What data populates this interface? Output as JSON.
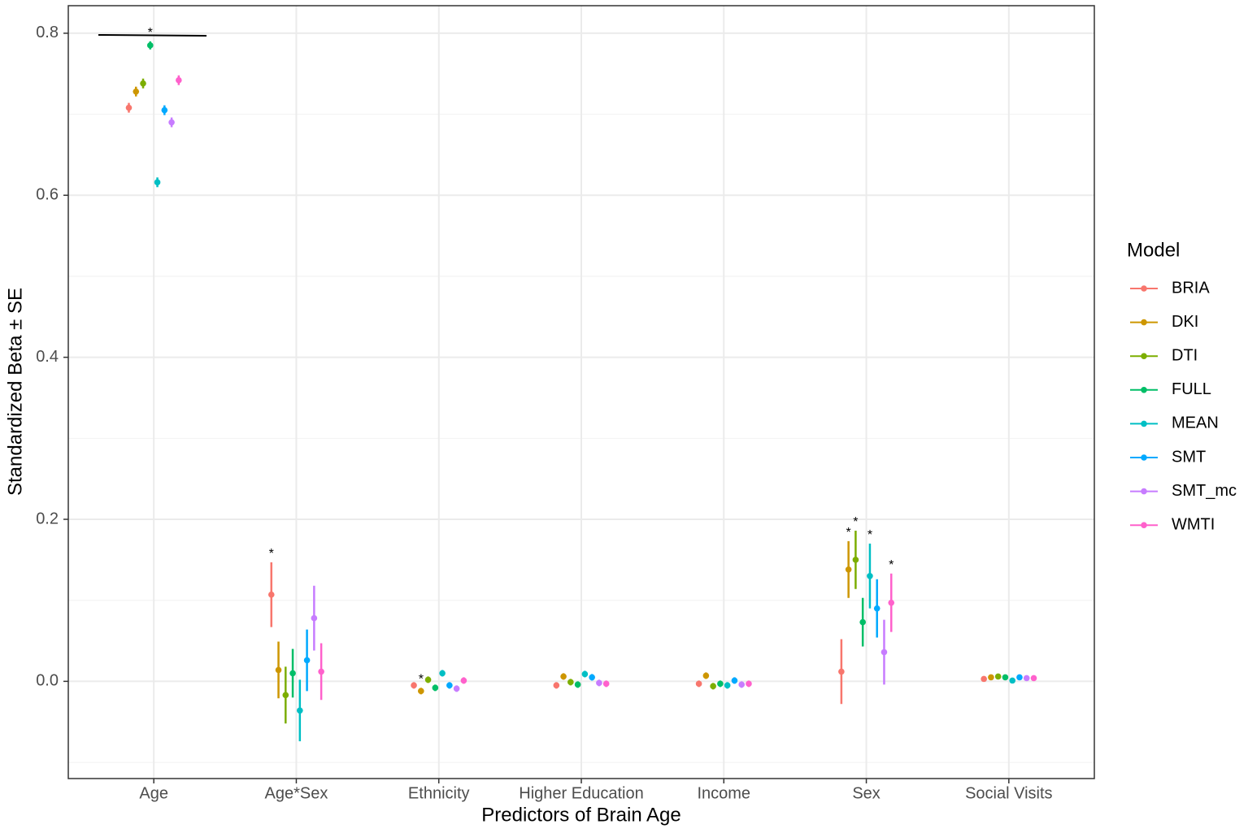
{
  "chart_data": {
    "type": "pointrange",
    "x_label": "Predictors of Brain Age",
    "y_label": "Standardized Beta ± SE",
    "legend_title": "Model",
    "legend": "right",
    "grid": true,
    "categories": [
      "Age",
      "Age*Sex",
      "Ethnicity",
      "Higher Education",
      "Income",
      "Sex",
      "Social Visits"
    ],
    "ylim": [
      -0.12,
      0.834
    ],
    "yticks": [
      {
        "value": 0,
        "label": "0.0"
      },
      0.2,
      0.4,
      0.6,
      0.8
    ],
    "significance_label": "*",
    "series": [
      {
        "name": "BRIA",
        "color": "#F8766D",
        "values": [
          0.708,
          0.107,
          -0.005,
          -0.005,
          -0.003,
          0.012,
          0.003
        ],
        "errors": [
          0.006,
          0.04,
          0.004,
          0.004,
          0.004,
          0.04,
          0.003
        ],
        "significant": [
          false,
          true,
          false,
          false,
          false,
          false,
          false
        ]
      },
      {
        "name": "DKI",
        "color": "#CD9600",
        "values": [
          0.728,
          0.014,
          -0.012,
          0.006,
          0.007,
          0.138,
          0.005
        ],
        "errors": [
          0.006,
          0.035,
          0.004,
          0.004,
          0.004,
          0.035,
          0.003
        ],
        "significant": [
          false,
          false,
          true,
          false,
          false,
          true,
          false
        ]
      },
      {
        "name": "DTI",
        "color": "#7CAE00",
        "values": [
          0.738,
          -0.017,
          0.002,
          -0.001,
          -0.006,
          0.15,
          0.006
        ],
        "errors": [
          0.006,
          0.035,
          0.004,
          0.004,
          0.004,
          0.036,
          0.003
        ],
        "significant": [
          false,
          false,
          false,
          false,
          false,
          true,
          false
        ]
      },
      {
        "name": "FULL",
        "color": "#00BE67",
        "values": [
          0.785,
          0.01,
          -0.008,
          -0.004,
          -0.003,
          0.073,
          0.005
        ],
        "errors": [
          0.005,
          0.03,
          0.004,
          0.004,
          0.004,
          0.03,
          0.003
        ],
        "significant": [
          true,
          false,
          false,
          false,
          false,
          false,
          false
        ]
      },
      {
        "name": "MEAN",
        "color": "#00BFC4",
        "values": [
          0.616,
          -0.036,
          0.01,
          0.009,
          -0.005,
          0.13,
          0.001
        ],
        "errors": [
          0.006,
          0.038,
          0.004,
          0.004,
          0.004,
          0.04,
          0.003
        ],
        "significant": [
          false,
          false,
          false,
          false,
          false,
          true,
          false
        ]
      },
      {
        "name": "SMT",
        "color": "#00A9FF",
        "values": [
          0.705,
          0.026,
          -0.005,
          0.005,
          0.001,
          0.09,
          0.005
        ],
        "errors": [
          0.006,
          0.038,
          0.004,
          0.004,
          0.004,
          0.036,
          0.003
        ],
        "significant": [
          false,
          false,
          false,
          false,
          false,
          false,
          false
        ]
      },
      {
        "name": "SMT_mc",
        "color": "#C77CFF",
        "values": [
          0.69,
          0.078,
          -0.009,
          -0.002,
          -0.004,
          0.036,
          0.004
        ],
        "errors": [
          0.006,
          0.04,
          0.004,
          0.004,
          0.004,
          0.04,
          0.003
        ],
        "significant": [
          false,
          false,
          false,
          false,
          false,
          false,
          false
        ]
      },
      {
        "name": "WMTI",
        "color": "#FF61CC",
        "values": [
          0.742,
          0.012,
          0.001,
          -0.003,
          -0.003,
          0.097,
          0.004
        ],
        "errors": [
          0.006,
          0.035,
          0.004,
          0.004,
          0.004,
          0.036,
          0.003
        ],
        "significant": [
          false,
          false,
          false,
          false,
          false,
          true,
          false
        ]
      }
    ]
  }
}
